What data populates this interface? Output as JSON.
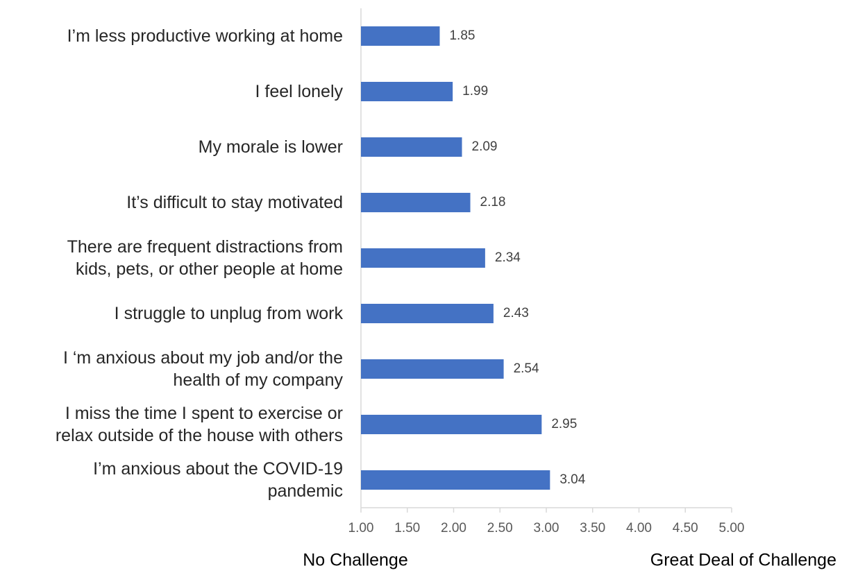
{
  "chart_data": {
    "type": "hbar",
    "categories": [
      "I’m less productive working at home",
      "I feel lonely",
      "My morale is lower",
      "It’s difficult to stay motivated",
      "There are frequent distractions from\nkids, pets, or other people at home",
      "I struggle to unplug from work",
      "I ‘m anxious about my job and/or the\nhealth of my company",
      "I miss the time I spent to exercise or\nrelax outside of the house with others",
      "I’m anxious about the COVID-19\npandemic"
    ],
    "values": [
      1.85,
      1.99,
      2.09,
      2.18,
      2.34,
      2.43,
      2.54,
      2.95,
      3.04
    ],
    "color": "#4472c4",
    "xlim": [
      1,
      5
    ],
    "xticks": [
      {
        "value": 1,
        "label": "1.00"
      },
      {
        "value": 1.5,
        "label": "1.50"
      },
      {
        "value": 2,
        "label": "2.00"
      },
      {
        "value": 2.5,
        "label": "2.50"
      },
      {
        "value": 3,
        "label": "3.00"
      },
      {
        "value": 3.5,
        "label": "3.50"
      },
      {
        "value": 4,
        "label": "4.00"
      },
      {
        "value": 4.5,
        "label": "4.50"
      },
      {
        "value": 5,
        "label": "5.00"
      }
    ],
    "xlabel_left": "No Challenge",
    "xlabel_right": "Great Deal of Challenge",
    "grid": false
  }
}
